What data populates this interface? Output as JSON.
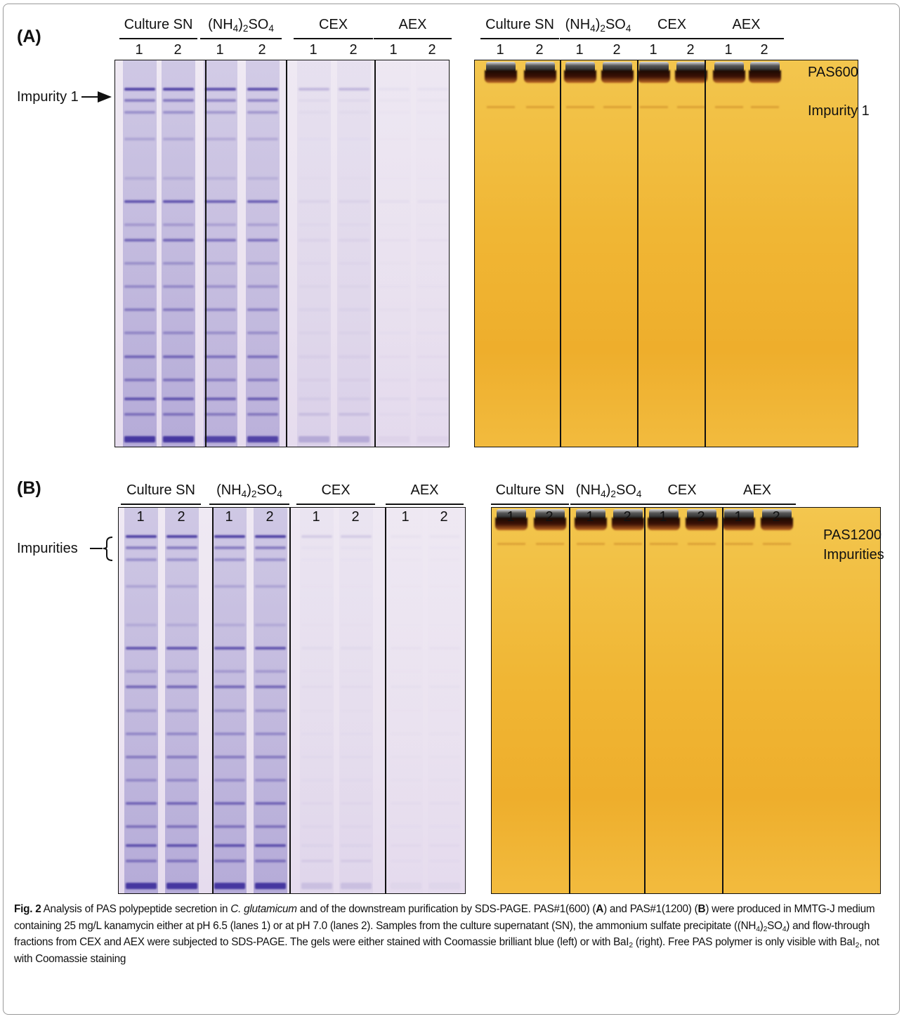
{
  "panels": [
    {
      "label": "(A)",
      "gels": [
        {
          "groups": [
            {
              "name": "Culture SN",
              "lanes": [
                "1",
                "2"
              ]
            },
            {
              "name": [
                {
                  "t": "(NH"
                },
                {
                  "sub": "4"
                },
                {
                  "t": ")"
                },
                {
                  "sub": "2"
                },
                {
                  "t": "SO"
                },
                {
                  "sub": "4"
                }
              ],
              "lanes": [
                "1",
                "2"
              ]
            },
            {
              "name": "CEX",
              "lanes": [
                "1",
                "2"
              ]
            },
            {
              "name": "AEX",
              "lanes": [
                "1",
                "2"
              ]
            }
          ],
          "annotations": [
            "Impurity 1"
          ]
        },
        {
          "groups": [
            {
              "name": "Culture SN",
              "lanes": [
                "1",
                "2"
              ]
            },
            {
              "name": [
                {
                  "t": "(NH"
                },
                {
                  "sub": "4"
                },
                {
                  "t": ")"
                },
                {
                  "sub": "2"
                },
                {
                  "t": "SO"
                },
                {
                  "sub": "4"
                }
              ],
              "lanes": [
                "1",
                "2"
              ]
            },
            {
              "name": "CEX",
              "lanes": [
                "1",
                "2"
              ]
            },
            {
              "name": "AEX",
              "lanes": [
                "1",
                "2"
              ]
            }
          ],
          "annotations": [
            "PAS600",
            "Impurity 1"
          ]
        }
      ]
    },
    {
      "label": "(B)",
      "gels": [
        {
          "groups": [
            {
              "name": "Culture SN",
              "lanes": [
                "1",
                "2"
              ]
            },
            {
              "name": [
                {
                  "t": "(NH"
                },
                {
                  "sub": "4"
                },
                {
                  "t": ")"
                },
                {
                  "sub": "2"
                },
                {
                  "t": "SO"
                },
                {
                  "sub": "4"
                }
              ],
              "lanes": [
                "1",
                "2"
              ]
            },
            {
              "name": "CEX",
              "lanes": [
                "1",
                "2"
              ]
            },
            {
              "name": "AEX",
              "lanes": [
                "1",
                "2"
              ]
            }
          ],
          "annotations": [
            "Impurities"
          ]
        },
        {
          "groups": [
            {
              "name": "Culture SN",
              "lanes": [
                "1",
                "2"
              ]
            },
            {
              "name": [
                {
                  "t": "(NH"
                },
                {
                  "sub": "4"
                },
                {
                  "t": ")"
                },
                {
                  "sub": "2"
                },
                {
                  "t": "SO"
                },
                {
                  "sub": "4"
                }
              ],
              "lanes": [
                "1",
                "2"
              ]
            },
            {
              "name": "CEX",
              "lanes": [
                "1",
                "2"
              ]
            },
            {
              "name": "AEX",
              "lanes": [
                "1",
                "2"
              ]
            }
          ],
          "annotations": [
            "PAS1200",
            "Impurities"
          ]
        }
      ]
    }
  ],
  "caption": [
    {
      "b": "Fig. 2"
    },
    {
      "t": "  Analysis of PAS polypeptide secretion in "
    },
    {
      "i": "C. glutamicum"
    },
    {
      "t": " and of the downstream purification by SDS-PAGE. PAS#1(600) ("
    },
    {
      "b": "A"
    },
    {
      "t": ") and PAS#1(1200) ("
    },
    {
      "b": "B"
    },
    {
      "t": ") were produced in MMTG-J medium containing 25 mg/L kanamycin either at pH 6.5 (lanes 1) or at pH 7.0 (lanes 2). Samples from the culture supernatant (SN), the ammonium sulfate precipitate ((NH"
    },
    {
      "sub": "4"
    },
    {
      "t": ")"
    },
    {
      "sub": "2"
    },
    {
      "t": "SO"
    },
    {
      "sub": "4"
    },
    {
      "t": ") and flow-through fractions from CEX and AEX were subjected to SDS-PAGE. The gels were either stained with Coomassie brilliant blue (left) or with BaI"
    },
    {
      "sub": "2"
    },
    {
      "t": " (right). Free PAS polymer is only visible with BaI"
    },
    {
      "sub": "2"
    },
    {
      "t": ", not with Coomassie staining"
    }
  ]
}
